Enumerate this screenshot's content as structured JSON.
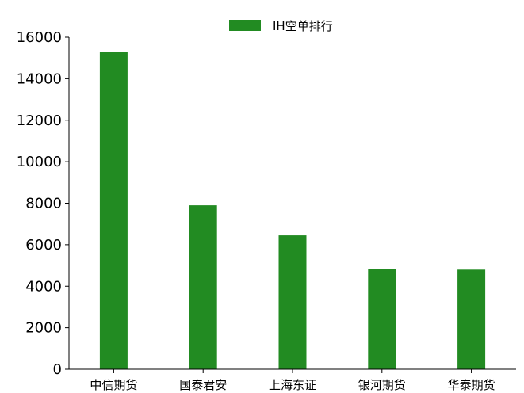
{
  "chart_data": {
    "type": "bar",
    "categories": [
      "中信期货",
      "国泰君安",
      "上海东证",
      "银河期货",
      "华泰期货"
    ],
    "series": [
      {
        "name": "IH空单排行",
        "values": [
          15300,
          7900,
          6450,
          4830,
          4800
        ]
      }
    ],
    "ylim": [
      0,
      16000
    ],
    "yticks": [
      0,
      2000,
      4000,
      6000,
      8000,
      10000,
      12000,
      14000,
      16000
    ],
    "grid": false,
    "legend_position": "top-center",
    "bar_color": "#228b22"
  }
}
